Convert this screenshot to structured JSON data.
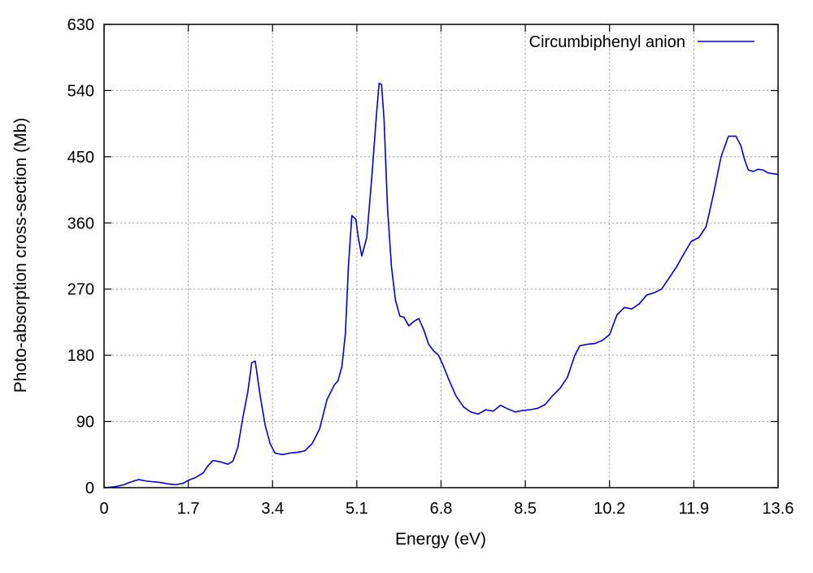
{
  "chart_data": {
    "type": "line",
    "title": "",
    "xlabel": "Energy (eV)",
    "ylabel": "Photo-absorption cross-section (Mb)",
    "xlim": [
      0,
      13.6
    ],
    "ylim": [
      0,
      630
    ],
    "xticks": [
      0,
      1.7,
      3.4,
      5.1,
      6.8,
      8.5,
      10.2,
      11.9,
      13.6
    ],
    "xtick_labels": [
      "0",
      "1.7",
      "3.4",
      "5.1",
      "6.8",
      "8.5",
      "10.2",
      "11.9",
      "13.6"
    ],
    "yticks": [
      0,
      90,
      180,
      270,
      360,
      450,
      540,
      630
    ],
    "ytick_labels": [
      "0",
      "90",
      "180",
      "270",
      "360",
      "450",
      "540",
      "630"
    ],
    "grid": true,
    "legend_position": "top-right",
    "series": [
      {
        "name": "Circumbiphenyl anion",
        "color": "#0000cc",
        "x": [
          0,
          0.2,
          0.4,
          0.55,
          0.7,
          0.85,
          1.0,
          1.15,
          1.3,
          1.45,
          1.6,
          1.7,
          1.85,
          2.0,
          2.1,
          2.2,
          2.35,
          2.5,
          2.6,
          2.7,
          2.8,
          2.9,
          2.98,
          3.05,
          3.15,
          3.25,
          3.35,
          3.45,
          3.6,
          3.75,
          3.9,
          4.05,
          4.2,
          4.35,
          4.5,
          4.65,
          4.72,
          4.8,
          4.87,
          4.93,
          5.0,
          5.08,
          5.13,
          5.2,
          5.3,
          5.4,
          5.5,
          5.55,
          5.6,
          5.65,
          5.72,
          5.8,
          5.88,
          5.97,
          6.05,
          6.15,
          6.25,
          6.35,
          6.45,
          6.55,
          6.65,
          6.75,
          6.85,
          6.95,
          7.1,
          7.25,
          7.4,
          7.55,
          7.7,
          7.85,
          8.0,
          8.15,
          8.3,
          8.45,
          8.6,
          8.75,
          8.9,
          9.05,
          9.2,
          9.35,
          9.5,
          9.6,
          9.75,
          9.9,
          10.05,
          10.2,
          10.35,
          10.5,
          10.65,
          10.8,
          10.95,
          11.1,
          11.25,
          11.4,
          11.55,
          11.7,
          11.85,
          12.0,
          12.15,
          12.3,
          12.45,
          12.6,
          12.75,
          12.85,
          12.93,
          13.0,
          13.1,
          13.2,
          13.3,
          13.4,
          13.5,
          13.6
        ],
        "y": [
          0,
          1,
          4,
          8,
          11,
          9,
          8,
          7,
          5,
          4,
          6,
          10,
          14,
          20,
          30,
          37,
          35,
          32,
          36,
          55,
          95,
          130,
          170,
          172,
          125,
          85,
          60,
          47,
          45,
          47,
          48,
          50,
          60,
          80,
          120,
          140,
          145,
          165,
          210,
          300,
          370,
          365,
          340,
          315,
          340,
          420,
          510,
          550,
          548,
          500,
          380,
          300,
          255,
          233,
          232,
          220,
          226,
          230,
          215,
          195,
          186,
          180,
          165,
          148,
          125,
          110,
          103,
          100,
          106,
          104,
          112,
          107,
          103,
          105,
          106,
          108,
          113,
          125,
          135,
          150,
          180,
          193,
          195,
          196,
          200,
          208,
          235,
          245,
          243,
          250,
          262,
          265,
          270,
          285,
          300,
          318,
          335,
          340,
          355,
          400,
          450,
          478,
          478,
          465,
          445,
          432,
          430,
          433,
          432,
          428,
          427,
          426
        ]
      }
    ]
  }
}
